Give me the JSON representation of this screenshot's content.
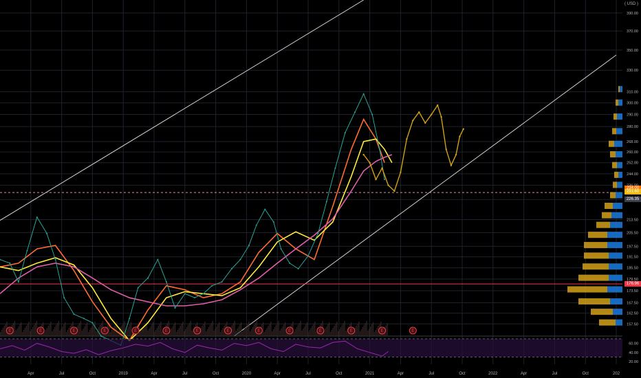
{
  "chart_data": {
    "type": "line",
    "title": "",
    "currency_label": "( USD )",
    "price_axis": {
      "scale": "log",
      "ylim": [
        152,
        405
      ],
      "ticks": [
        "390.00",
        "370.00",
        "350.00",
        "330.00",
        "310.00",
        "300.00",
        "290.00",
        "280.00",
        "268.00",
        "260.00",
        "252.00",
        "244.00",
        "236.00",
        "226.35",
        "213.50",
        "205.50",
        "197.50",
        "191.50",
        "185.50",
        "179.50",
        "173.50",
        "167.50",
        "162.50",
        "157.50"
      ],
      "tick_values": [
        390,
        370,
        350,
        330,
        310,
        300,
        290,
        280,
        268,
        260,
        252,
        244,
        236,
        226.35,
        213.5,
        205.5,
        197.5,
        191.5,
        185.5,
        179.5,
        173.5,
        167.5,
        162.5,
        157.5
      ]
    },
    "rsi_axis": {
      "ylim": [
        20,
        70
      ],
      "ticks": [
        "60.00",
        "40.00",
        "20.00"
      ],
      "tick_values": [
        60,
        40,
        20
      ],
      "bands": [
        70,
        30
      ]
    },
    "time_axis": {
      "ticks": [
        "Apr",
        "Jul",
        "Oct",
        "2019",
        "Apr",
        "Jul",
        "Oct",
        "2020",
        "Apr",
        "Jul",
        "Oct",
        "2021",
        "Apr",
        "Jul",
        "Oct",
        "2022",
        "Apr",
        "Jul",
        "Oct",
        "202"
      ],
      "tick_dates": [
        2018.25,
        2018.5,
        2018.75,
        2019.0,
        2019.25,
        2019.5,
        2019.75,
        2020.0,
        2020.25,
        2020.5,
        2020.75,
        2021.0,
        2021.25,
        2021.5,
        2021.75,
        2022.0,
        2022.25,
        2022.5,
        2022.75,
        2023.0
      ],
      "xlim": [
        2018.0,
        2023.05
      ]
    },
    "price_labels": [
      {
        "text": "234.00",
        "value": 234,
        "color": "#ff6d00"
      },
      {
        "text": "231.60",
        "value": 231.6,
        "color": "#f0b90b"
      },
      {
        "text": "226.35",
        "value": 226.35,
        "color": "#3a3f4b"
      },
      {
        "text": "176.96",
        "value": 176.96,
        "color": "#f23645"
      }
    ],
    "horizontal_lines": [
      {
        "value": 231,
        "color": "#e8909c",
        "style": "dashed"
      },
      {
        "value": 176.96,
        "color": "#f23645",
        "style": "solid"
      }
    ],
    "channel_lines": [
      {
        "points": [
          [
            2018.0,
            213
          ],
          [
            2020.95,
            405
          ]
        ],
        "color": "#d0d0d0"
      },
      {
        "points": [
          [
            2019.9,
            152
          ],
          [
            2023.0,
            345
          ]
        ],
        "color": "#d0d0d0"
      }
    ],
    "price_series": {
      "name": "",
      "color": "#26a69a",
      "dates": [
        2018.0,
        2018.08,
        2018.15,
        2018.22,
        2018.3,
        2018.38,
        2018.45,
        2018.52,
        2018.6,
        2018.68,
        2018.75,
        2018.82,
        2018.9,
        2018.98,
        2019.05,
        2019.12,
        2019.2,
        2019.28,
        2019.35,
        2019.42,
        2019.5,
        2019.58,
        2019.65,
        2019.72,
        2019.8,
        2019.88,
        2019.95,
        2020.02,
        2020.08,
        2020.15,
        2020.22,
        2020.28,
        2020.35,
        2020.42,
        2020.5,
        2020.58,
        2020.65,
        2020.72,
        2020.8,
        2020.88,
        2020.95,
        2021.02,
        2021.08,
        2021.12
      ],
      "values": [
        190,
        188,
        178,
        195,
        215,
        205,
        190,
        170,
        162,
        160,
        158,
        152,
        150,
        148,
        160,
        175,
        180,
        190,
        178,
        165,
        172,
        170,
        172,
        176,
        178,
        185,
        190,
        198,
        210,
        220,
        212,
        196,
        188,
        185,
        192,
        205,
        225,
        248,
        275,
        292,
        308,
        290,
        262,
        240
      ]
    },
    "projection_series": {
      "name": "",
      "color": "#d4a017",
      "dates": [
        2020.95,
        2021.0,
        2021.05,
        2021.1,
        2021.15,
        2021.2,
        2021.25,
        2021.3,
        2021.35,
        2021.4,
        2021.45,
        2021.5,
        2021.55,
        2021.58,
        2021.62,
        2021.66,
        2021.7,
        2021.73,
        2021.76
      ],
      "values": [
        258,
        252,
        240,
        248,
        236,
        232,
        245,
        270,
        285,
        292,
        283,
        290,
        298,
        288,
        262,
        250,
        258,
        272,
        278
      ]
    },
    "moving_averages": [
      {
        "name": "",
        "color": "#ff6d33",
        "dates": [
          2018.0,
          2018.15,
          2018.3,
          2018.45,
          2018.6,
          2018.75,
          2018.9,
          2019.05,
          2019.2,
          2019.35,
          2019.5,
          2019.65,
          2019.8,
          2019.95,
          2020.1,
          2020.25,
          2020.4,
          2020.55,
          2020.7,
          2020.85,
          2020.95,
          2021.05,
          2021.12
        ],
        "values": [
          186,
          188,
          196,
          198,
          184,
          168,
          156,
          150,
          164,
          176,
          174,
          170,
          172,
          178,
          194,
          205,
          196,
          190,
          222,
          262,
          286,
          270,
          252
        ]
      },
      {
        "name": "",
        "color": "#ffeb3b",
        "dates": [
          2018.0,
          2018.15,
          2018.3,
          2018.45,
          2018.6,
          2018.75,
          2018.9,
          2019.05,
          2019.2,
          2019.35,
          2019.5,
          2019.65,
          2019.8,
          2019.95,
          2020.1,
          2020.25,
          2020.4,
          2020.55,
          2020.7,
          2020.85,
          2020.95,
          2021.05,
          2021.12,
          2021.18
        ],
        "values": [
          186,
          184,
          188,
          191,
          187,
          175,
          160,
          150,
          158,
          170,
          173,
          172,
          171,
          175,
          186,
          200,
          206,
          201,
          212,
          242,
          268,
          270,
          262,
          252
        ]
      },
      {
        "name": "",
        "color": "#e05fa8",
        "dates": [
          2018.0,
          2018.15,
          2018.3,
          2018.45,
          2018.6,
          2018.75,
          2018.9,
          2019.05,
          2019.2,
          2019.35,
          2019.5,
          2019.65,
          2019.8,
          2019.95,
          2020.1,
          2020.25,
          2020.4,
          2020.55,
          2020.7,
          2020.85,
          2020.95,
          2021.05,
          2021.12,
          2021.18
        ],
        "values": [
          172,
          180,
          186,
          188,
          186,
          180,
          174,
          170,
          168,
          166,
          166,
          167,
          169,
          174,
          180,
          188,
          196,
          204,
          214,
          232,
          246,
          253,
          256,
          258
        ]
      }
    ],
    "rsi_series": {
      "name": "",
      "color": "#9c27b0",
      "dates": [
        2018.0,
        2018.1,
        2018.2,
        2018.3,
        2018.4,
        2018.5,
        2018.6,
        2018.7,
        2018.8,
        2018.9,
        2019.0,
        2019.1,
        2019.2,
        2019.3,
        2019.4,
        2019.5,
        2019.6,
        2019.7,
        2019.8,
        2019.9,
        2020.0,
        2020.1,
        2020.2,
        2020.3,
        2020.4,
        2020.5,
        2020.6,
        2020.7,
        2020.8,
        2020.9,
        2021.0,
        2021.1,
        2021.15
      ],
      "values": [
        48,
        55,
        45,
        60,
        52,
        42,
        38,
        46,
        35,
        44,
        50,
        58,
        54,
        62,
        48,
        40,
        56,
        50,
        45,
        60,
        55,
        62,
        48,
        42,
        58,
        52,
        50,
        62,
        65,
        48,
        40,
        32,
        42
      ]
    },
    "volume_profile": {
      "up_color": "#d4a017",
      "down_color": "#1976d2",
      "rows": [
        {
          "value": 312,
          "up": 2,
          "down": 4
        },
        {
          "value": 300,
          "up": 4,
          "down": 6
        },
        {
          "value": 288,
          "up": 5,
          "down": 8
        },
        {
          "value": 276,
          "up": 6,
          "down": 9
        },
        {
          "value": 266,
          "up": 8,
          "down": 12
        },
        {
          "value": 258,
          "up": 8,
          "down": 10
        },
        {
          "value": 250,
          "up": 7,
          "down": 8
        },
        {
          "value": 243,
          "up": 6,
          "down": 6
        },
        {
          "value": 236,
          "up": 6,
          "down": 8
        },
        {
          "value": 229,
          "up": 8,
          "down": 10
        },
        {
          "value": 222,
          "up": 12,
          "down": 14
        },
        {
          "value": 216,
          "up": 14,
          "down": 16
        },
        {
          "value": 210,
          "up": 20,
          "down": 18
        },
        {
          "value": 204,
          "up": 28,
          "down": 22
        },
        {
          "value": 198,
          "up": 34,
          "down": 22
        },
        {
          "value": 192,
          "up": 36,
          "down": 20
        },
        {
          "value": 186,
          "up": 38,
          "down": 20
        },
        {
          "value": 180,
          "up": 44,
          "down": 20
        },
        {
          "value": 174,
          "up": 58,
          "down": 22
        },
        {
          "value": 168,
          "up": 46,
          "down": 18
        },
        {
          "value": 163,
          "up": 32,
          "down": 14
        },
        {
          "value": 158,
          "up": 24,
          "down": 10
        }
      ]
    },
    "earnings_markers": {
      "label": "E",
      "dates": [
        2018.08,
        2018.33,
        2018.6,
        2018.85,
        2019.1,
        2019.35,
        2019.6,
        2019.85,
        2020.1,
        2020.35,
        2020.6,
        2020.85,
        2021.1,
        2021.35
      ]
    },
    "grid": true,
    "legend": "none"
  }
}
